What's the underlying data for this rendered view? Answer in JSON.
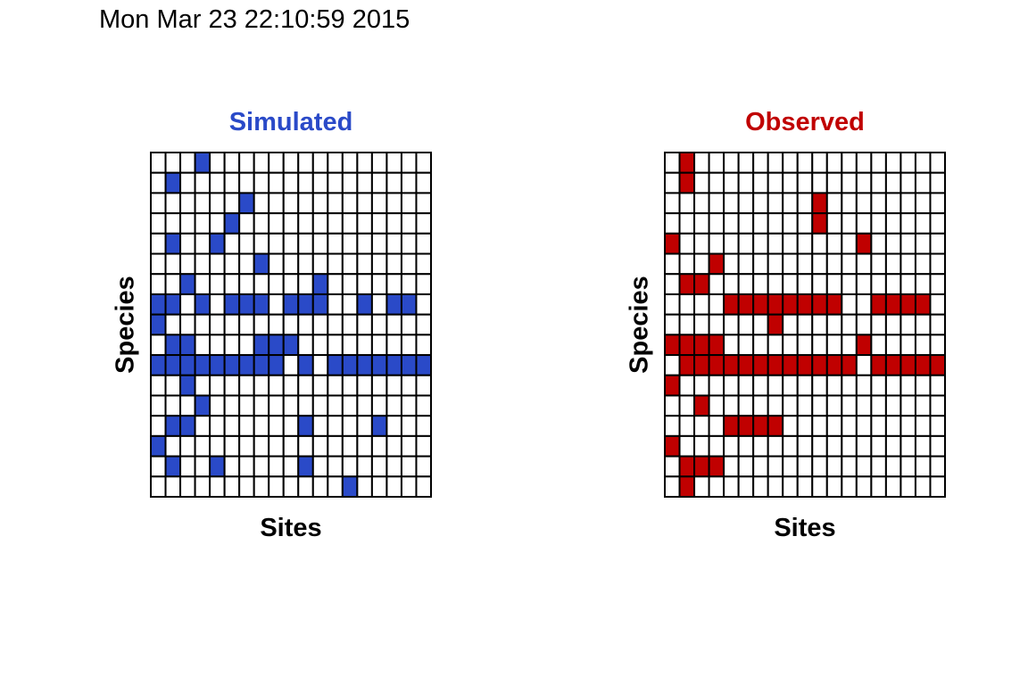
{
  "timestamp": "Mon Mar 23 22:10:59 2015",
  "chart_data": [
    {
      "type": "heatmap",
      "title": "Simulated",
      "xlabel": "Sites",
      "ylabel": "Species",
      "title_color": "#2A4AC8",
      "fill_color": "#2A4AC8",
      "n_rows": 17,
      "n_cols": 19,
      "matrix": [
        [
          0,
          0,
          0,
          1,
          0,
          0,
          0,
          0,
          0,
          0,
          0,
          0,
          0,
          0,
          0,
          0,
          0,
          0,
          0
        ],
        [
          0,
          1,
          0,
          0,
          0,
          0,
          0,
          0,
          0,
          0,
          0,
          0,
          0,
          0,
          0,
          0,
          0,
          0,
          0
        ],
        [
          0,
          0,
          0,
          0,
          0,
          0,
          1,
          0,
          0,
          0,
          0,
          0,
          0,
          0,
          0,
          0,
          0,
          0,
          0
        ],
        [
          0,
          0,
          0,
          0,
          0,
          1,
          0,
          0,
          0,
          0,
          0,
          0,
          0,
          0,
          0,
          0,
          0,
          0,
          0
        ],
        [
          0,
          1,
          0,
          0,
          1,
          0,
          0,
          0,
          0,
          0,
          0,
          0,
          0,
          0,
          0,
          0,
          0,
          0,
          0
        ],
        [
          0,
          0,
          0,
          0,
          0,
          0,
          0,
          1,
          0,
          0,
          0,
          0,
          0,
          0,
          0,
          0,
          0,
          0,
          0
        ],
        [
          0,
          0,
          1,
          0,
          0,
          0,
          0,
          0,
          0,
          0,
          0,
          1,
          0,
          0,
          0,
          0,
          0,
          0,
          0
        ],
        [
          1,
          1,
          0,
          1,
          0,
          1,
          1,
          1,
          0,
          1,
          1,
          1,
          0,
          0,
          1,
          0,
          1,
          1,
          0
        ],
        [
          1,
          0,
          0,
          0,
          0,
          0,
          0,
          0,
          0,
          0,
          0,
          0,
          0,
          0,
          0,
          0,
          0,
          0,
          0
        ],
        [
          0,
          1,
          1,
          0,
          0,
          0,
          0,
          1,
          1,
          1,
          0,
          0,
          0,
          0,
          0,
          0,
          0,
          0,
          0
        ],
        [
          1,
          1,
          1,
          1,
          1,
          1,
          1,
          1,
          1,
          0,
          1,
          0,
          1,
          1,
          1,
          1,
          1,
          1,
          1
        ],
        [
          0,
          0,
          1,
          0,
          0,
          0,
          0,
          0,
          0,
          0,
          0,
          0,
          0,
          0,
          0,
          0,
          0,
          0,
          0
        ],
        [
          0,
          0,
          0,
          1,
          0,
          0,
          0,
          0,
          0,
          0,
          0,
          0,
          0,
          0,
          0,
          0,
          0,
          0,
          0
        ],
        [
          0,
          1,
          1,
          0,
          0,
          0,
          0,
          0,
          0,
          0,
          1,
          0,
          0,
          0,
          0,
          1,
          0,
          0,
          0
        ],
        [
          1,
          0,
          0,
          0,
          0,
          0,
          0,
          0,
          0,
          0,
          0,
          0,
          0,
          0,
          0,
          0,
          0,
          0,
          0
        ],
        [
          0,
          1,
          0,
          0,
          1,
          0,
          0,
          0,
          0,
          0,
          1,
          0,
          0,
          0,
          0,
          0,
          0,
          0,
          0
        ],
        [
          0,
          0,
          0,
          0,
          0,
          0,
          0,
          0,
          0,
          0,
          0,
          0,
          0,
          1,
          0,
          0,
          0,
          0,
          0
        ]
      ]
    },
    {
      "type": "heatmap",
      "title": "Observed",
      "xlabel": "Sites",
      "ylabel": "Species",
      "title_color": "#C00000",
      "fill_color": "#C00000",
      "n_rows": 17,
      "n_cols": 19,
      "matrix": [
        [
          0,
          1,
          0,
          0,
          0,
          0,
          0,
          0,
          0,
          0,
          0,
          0,
          0,
          0,
          0,
          0,
          0,
          0,
          0
        ],
        [
          0,
          1,
          0,
          0,
          0,
          0,
          0,
          0,
          0,
          0,
          0,
          0,
          0,
          0,
          0,
          0,
          0,
          0,
          0
        ],
        [
          0,
          0,
          0,
          0,
          0,
          0,
          0,
          0,
          0,
          0,
          1,
          0,
          0,
          0,
          0,
          0,
          0,
          0,
          0
        ],
        [
          0,
          0,
          0,
          0,
          0,
          0,
          0,
          0,
          0,
          0,
          1,
          0,
          0,
          0,
          0,
          0,
          0,
          0,
          0
        ],
        [
          1,
          0,
          0,
          0,
          0,
          0,
          0,
          0,
          0,
          0,
          0,
          0,
          0,
          1,
          0,
          0,
          0,
          0,
          0
        ],
        [
          0,
          0,
          0,
          1,
          0,
          0,
          0,
          0,
          0,
          0,
          0,
          0,
          0,
          0,
          0,
          0,
          0,
          0,
          0
        ],
        [
          0,
          1,
          1,
          0,
          0,
          0,
          0,
          0,
          0,
          0,
          0,
          0,
          0,
          0,
          0,
          0,
          0,
          0,
          0
        ],
        [
          0,
          0,
          0,
          0,
          1,
          1,
          1,
          1,
          1,
          1,
          1,
          1,
          0,
          0,
          1,
          1,
          1,
          1,
          0
        ],
        [
          0,
          0,
          0,
          0,
          0,
          0,
          0,
          1,
          0,
          0,
          0,
          0,
          0,
          0,
          0,
          0,
          0,
          0,
          0
        ],
        [
          1,
          1,
          1,
          1,
          0,
          0,
          0,
          0,
          0,
          0,
          0,
          0,
          0,
          1,
          0,
          0,
          0,
          0,
          0
        ],
        [
          0,
          1,
          1,
          1,
          1,
          1,
          1,
          1,
          1,
          1,
          1,
          1,
          1,
          0,
          1,
          1,
          1,
          1,
          1
        ],
        [
          1,
          0,
          0,
          0,
          0,
          0,
          0,
          0,
          0,
          0,
          0,
          0,
          0,
          0,
          0,
          0,
          0,
          0,
          0
        ],
        [
          0,
          0,
          1,
          0,
          0,
          0,
          0,
          0,
          0,
          0,
          0,
          0,
          0,
          0,
          0,
          0,
          0,
          0,
          0
        ],
        [
          0,
          0,
          0,
          0,
          1,
          1,
          1,
          1,
          0,
          0,
          0,
          0,
          0,
          0,
          0,
          0,
          0,
          0,
          0
        ],
        [
          1,
          0,
          0,
          0,
          0,
          0,
          0,
          0,
          0,
          0,
          0,
          0,
          0,
          0,
          0,
          0,
          0,
          0,
          0
        ],
        [
          0,
          1,
          1,
          1,
          0,
          0,
          0,
          0,
          0,
          0,
          0,
          0,
          0,
          0,
          0,
          0,
          0,
          0,
          0
        ],
        [
          0,
          1,
          0,
          0,
          0,
          0,
          0,
          0,
          0,
          0,
          0,
          0,
          0,
          0,
          0,
          0,
          0,
          0,
          0
        ]
      ]
    }
  ]
}
